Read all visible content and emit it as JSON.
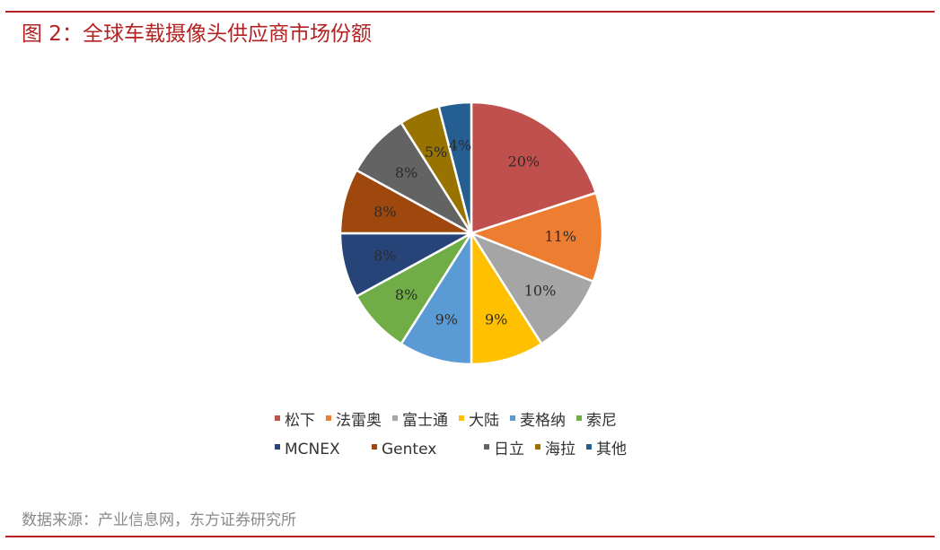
{
  "header": {
    "title": "图 2：全球车载摄像头供应商市场份额"
  },
  "footer": {
    "source": "数据来源：产业信息网，东方证券研究所"
  },
  "chart_data": {
    "type": "pie",
    "title": "",
    "legend_position": "bottom",
    "slices": [
      {
        "label": "松下",
        "value": 20,
        "display": "20%",
        "color": "#c0504d"
      },
      {
        "label": "法雷奥",
        "value": 11,
        "display": "11%",
        "color": "#ed7d31"
      },
      {
        "label": "富士通",
        "value": 10,
        "display": "10%",
        "color": "#a5a5a5"
      },
      {
        "label": "大陆",
        "value": 9,
        "display": "9%",
        "color": "#ffc000"
      },
      {
        "label": "麦格纳",
        "value": 9,
        "display": "9%",
        "color": "#5b9bd5"
      },
      {
        "label": "索尼",
        "value": 8,
        "display": "8%",
        "color": "#70ad47"
      },
      {
        "label": "MCNEX",
        "value": 8,
        "display": "8%",
        "color": "#264478"
      },
      {
        "label": "Gentex",
        "value": 8,
        "display": "8%",
        "color": "#9e480e"
      },
      {
        "label": "日立",
        "value": 8,
        "display": "8%",
        "color": "#636363"
      },
      {
        "label": "海拉",
        "value": 5,
        "display": "5%",
        "color": "#997300"
      },
      {
        "label": "其他",
        "value": 4,
        "display": "4%",
        "color": "#255e91"
      }
    ]
  }
}
